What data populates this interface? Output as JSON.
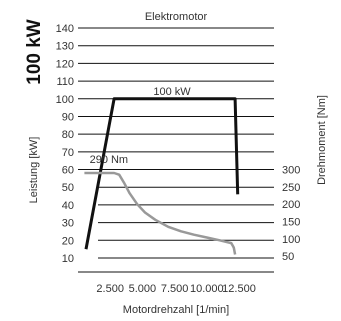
{
  "chart_data": {
    "type": "line",
    "title": "Elektromotor",
    "side_title": "100 kW",
    "xlabel": "Motordrehzahl [1/min]",
    "ylabel_left": "Leistung [kW]",
    "ylabel_right": "Drehmoment [Nm]",
    "xlim": [
      0,
      14000
    ],
    "ylim_left": [
      5,
      140
    ],
    "ylim_right": [
      0,
      375
    ],
    "x_ticks": [
      2500,
      5000,
      7500,
      10000,
      12500
    ],
    "x_tick_labels": [
      "2.500",
      "5.000",
      "7.500",
      "10.000",
      "12.500"
    ],
    "y_left_ticks": [
      10,
      20,
      30,
      40,
      50,
      60,
      70,
      80,
      90,
      100,
      110,
      120,
      130,
      140
    ],
    "y_right_ticks": [
      50,
      100,
      150,
      200,
      250,
      300
    ],
    "grid": true,
    "series": [
      {
        "name": "Leistung",
        "axis": "left",
        "color": "#111111",
        "points": [
          [
            0,
            15
          ],
          [
            2800,
            100
          ],
          [
            12200,
            100
          ],
          [
            12400,
            46
          ]
        ],
        "label": "100 kW",
        "label_x": 7300
      },
      {
        "name": "Drehmoment",
        "axis": "right",
        "color": "#999999",
        "points": [
          [
            500,
            290
          ],
          [
            2800,
            290
          ],
          [
            3200,
            285
          ],
          [
            3600,
            260
          ],
          [
            4000,
            232
          ],
          [
            4600,
            200
          ],
          [
            5200,
            176
          ],
          [
            6000,
            155
          ],
          [
            7000,
            135
          ],
          [
            8000,
            122
          ],
          [
            9000,
            112
          ],
          [
            10000,
            104
          ],
          [
            11000,
            96
          ],
          [
            11900,
            88
          ],
          [
            12100,
            75
          ],
          [
            12200,
            55
          ]
        ],
        "label": "290 Nm",
        "label_x": 900
      }
    ]
  }
}
